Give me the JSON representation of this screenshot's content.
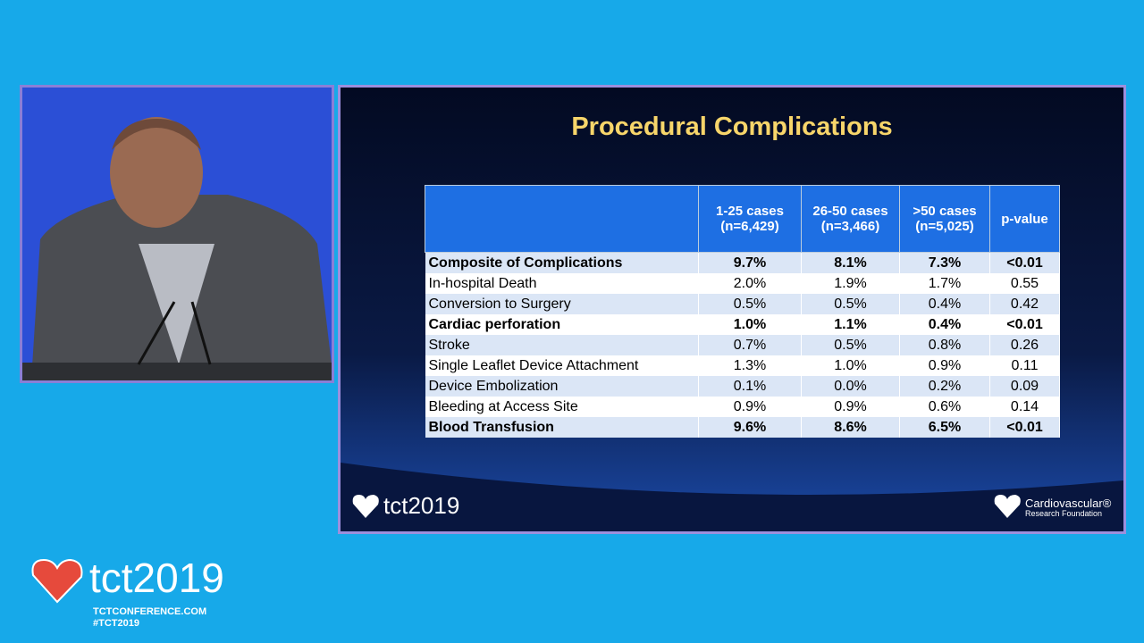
{
  "slide": {
    "title": "Procedural Complications",
    "table": {
      "header": [
        "",
        "1-25 cases\n(n=6,429)",
        "26-50 cases\n(n=3,466)",
        ">50 cases\n(n=5,025)",
        "p-value"
      ],
      "rows": [
        {
          "cells": [
            "Composite of Complications",
            "9.7%",
            "8.1%",
            "7.3%",
            "<0.01"
          ],
          "bold": true
        },
        {
          "cells": [
            "In-hospital Death",
            "2.0%",
            "1.9%",
            "1.7%",
            "0.55"
          ],
          "bold": false
        },
        {
          "cells": [
            "Conversion to Surgery",
            "0.5%",
            "0.5%",
            "0.4%",
            "0.42"
          ],
          "bold": false
        },
        {
          "cells": [
            "Cardiac perforation",
            "1.0%",
            "1.1%",
            "0.4%",
            "<0.01"
          ],
          "bold": true
        },
        {
          "cells": [
            "Stroke",
            "0.7%",
            "0.5%",
            "0.8%",
            "0.26"
          ],
          "bold": false
        },
        {
          "cells": [
            "Single Leaflet Device Attachment",
            "1.3%",
            "1.0%",
            "0.9%",
            "0.11"
          ],
          "bold": false
        },
        {
          "cells": [
            "Device Embolization",
            "0.1%",
            "0.0%",
            "0.2%",
            "0.09"
          ],
          "bold": false
        },
        {
          "cells": [
            "Bleeding at Access Site",
            "0.9%",
            "0.9%",
            "0.6%",
            "0.14"
          ],
          "bold": false
        },
        {
          "cells": [
            "Blood Transfusion",
            "9.6%",
            "8.6%",
            "6.5%",
            "<0.01"
          ],
          "bold": true
        }
      ]
    },
    "logo_left": "tct2019",
    "logo_right": [
      "Cardiovascular®",
      "Research Foundation"
    ]
  },
  "branding": {
    "logo": "tct2019",
    "url": "TCTCONFERENCE.COM",
    "hashtag": "#TCT2019"
  }
}
